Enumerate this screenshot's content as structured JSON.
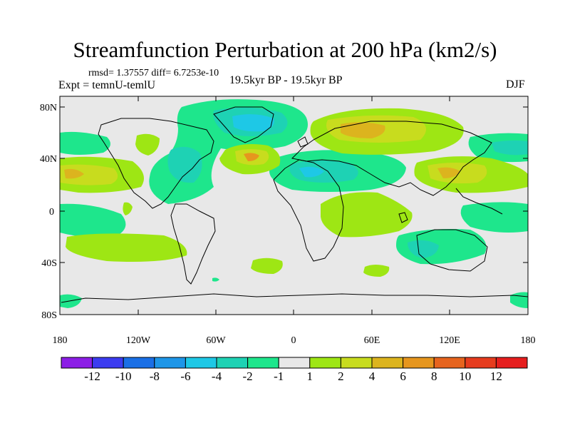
{
  "title": "Streamfunction Perturbation at 200 hPa (km2/s)",
  "stats": "rmsd= 1.37557 diff= 6.7253e-10",
  "experiment": "Expt = temnU-temlU",
  "period": "19.5kyr BP - 19.5kyr BP",
  "season": "DJF",
  "lat_ticks": [
    "80N",
    "40N",
    "0",
    "40S",
    "80S"
  ],
  "lon_ticks": [
    "180",
    "120W",
    "60W",
    "0",
    "60E",
    "120E",
    "180"
  ],
  "colorbar": {
    "labels": [
      "-12",
      "-10",
      "-8",
      "-6",
      "-4",
      "-2",
      "-1",
      "1",
      "2",
      "4",
      "6",
      "8",
      "10",
      "12"
    ],
    "colors": [
      "#8c1ee6",
      "#3c3cf0",
      "#1a6fe6",
      "#1e96e8",
      "#1ec8e6",
      "#1ed2b4",
      "#1ee68c",
      "#e8e8e8",
      "#9ee614",
      "#c8dc1e",
      "#dcb41e",
      "#e6961e",
      "#e6641e",
      "#e63c1e",
      "#e61e1e"
    ]
  },
  "colors": {
    "background_field": "#e8e8e8",
    "neg_light": "#1ee68c",
    "neg_mid": "#1ed2b4",
    "neg_strong": "#1ec8e6",
    "pos_light": "#9ee614",
    "pos_mid": "#c8dc1e",
    "pos_strong": "#dcb41e",
    "pos_stronger": "#e6961e"
  }
}
